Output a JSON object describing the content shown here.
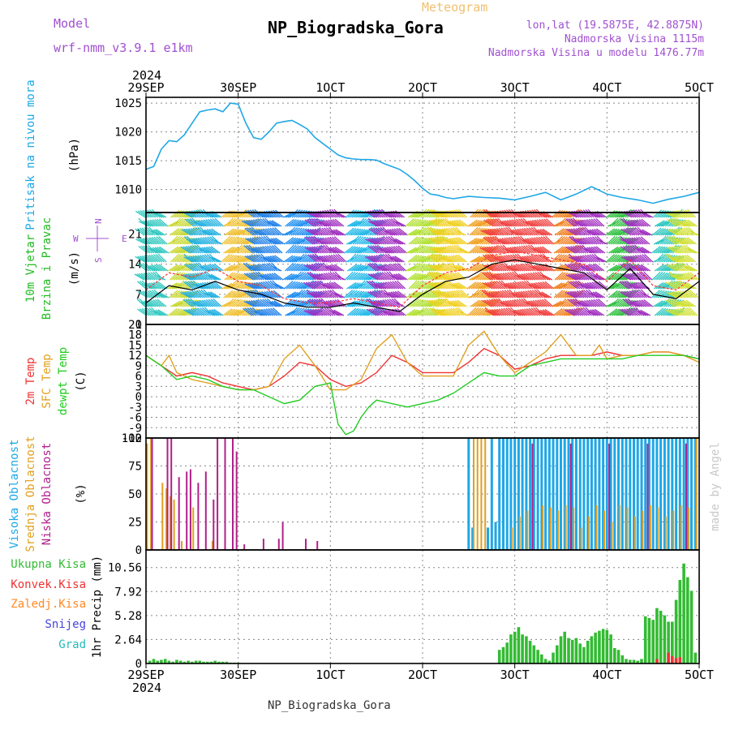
{
  "header": {
    "model_label": "Model",
    "model_name": "wrf-nmm_v3.9.1 e1km",
    "meteogram_label": "Meteogram",
    "station": "NP_Biogradska_Gora",
    "lonlat": "lon,lat (19.5875E, 42.8875N)",
    "altitude": "Nadmorska Visina 1115m",
    "model_altitude": "Nadmorska Visina u modelu 1476.77m",
    "footer_station": "NP_Biogradska_Gora",
    "credit": "made by Angel"
  },
  "time_axis": {
    "year": "2024",
    "ticks": [
      "29SEP",
      "30SEP",
      "1OCT",
      "2OCT",
      "3OCT",
      "4OCT",
      "5OCT"
    ]
  },
  "colors": {
    "pressure": "#1ea7e6",
    "wind_label": "#22bb22",
    "temp2m": "#ee3333",
    "sfc_temp": "#e0a020",
    "dewpt": "#22cc22",
    "cloud_high": "#1ea7e6",
    "cloud_mid": "#e0a020",
    "cloud_low": "#b0208a",
    "precip_total": "#33bb33",
    "precip_conv": "#ee3333",
    "precip_frozen": "#ff8822",
    "precip_snow": "#4444dd",
    "precip_hail": "#22bbbb",
    "compass": "#a050d0"
  },
  "chart_data": [
    {
      "type": "line",
      "name": "pressure",
      "ylabel_lines": [
        "Pritisak na nivou mora"
      ],
      "unit": "(hPa)",
      "ylim": [
        1006,
        1026
      ],
      "yticks": [
        1010,
        1015,
        1020,
        1025
      ],
      "x": [
        0,
        2,
        4,
        6,
        8,
        10,
        12,
        14,
        16,
        18,
        20,
        22,
        24,
        26,
        28,
        30,
        32,
        34,
        36,
        38,
        40,
        42,
        44,
        46,
        48,
        50,
        52,
        54,
        56,
        58,
        60,
        62,
        64,
        66,
        68,
        70,
        72,
        74,
        76,
        78,
        80,
        84,
        88,
        92,
        96,
        100,
        104,
        108,
        112,
        116,
        120,
        124,
        128,
        132,
        136,
        140,
        144
      ],
      "y": [
        1013.5,
        1014,
        1017,
        1018.5,
        1018.3,
        1019.5,
        1021.5,
        1023.5,
        1023.8,
        1024,
        1023.5,
        1025,
        1024.8,
        1021.5,
        1019,
        1018.7,
        1020,
        1021.5,
        1021.8,
        1022,
        1021.3,
        1020.5,
        1019,
        1018,
        1017,
        1016,
        1015.5,
        1015.3,
        1015.2,
        1015.2,
        1015.1,
        1014.5,
        1014,
        1013.5,
        1012.6,
        1011.5,
        1010.2,
        1009.2,
        1009,
        1008.6,
        1008.4,
        1008.8,
        1008.6,
        1008.5,
        1008.2,
        1008.8,
        1009.5,
        1008.2,
        1009.2,
        1010.5,
        1009.2,
        1008.6,
        1008.2,
        1007.6,
        1008.3,
        1008.8,
        1009.5
      ]
    },
    {
      "type": "wind",
      "name": "wind",
      "ylabel_lines": [
        "10m Vjetar",
        "Brzina i Pravac"
      ],
      "unit": "(m/s)",
      "ylim": [
        0,
        26
      ],
      "yticks": [
        0,
        7,
        14,
        21
      ],
      "compass": {
        "n": "N",
        "s": "S",
        "e": "E",
        "w": "W"
      },
      "x": [
        0,
        6,
        12,
        18,
        24,
        30,
        36,
        42,
        48,
        54,
        60,
        66,
        72,
        78,
        84,
        90,
        96,
        102,
        108,
        114,
        120,
        126,
        132,
        138,
        144
      ],
      "speed": [
        5,
        9,
        8,
        10,
        8,
        7,
        5,
        4,
        4,
        5,
        4,
        3,
        7,
        10,
        11,
        14,
        15,
        14,
        13,
        12,
        8,
        13,
        7,
        6,
        10
      ],
      "gust": [
        8,
        12,
        11,
        13,
        10,
        9,
        6,
        5,
        5,
        6,
        5,
        4,
        9,
        12,
        13,
        16,
        17,
        16,
        15,
        14,
        10,
        15,
        9,
        8,
        12
      ],
      "bands": [
        {
          "from": 0,
          "to": 6,
          "color": "#30c8c0"
        },
        {
          "from": 6,
          "to": 12,
          "color": "#c8d830"
        },
        {
          "from": 12,
          "to": 20,
          "color": "#20b0e0"
        },
        {
          "from": 20,
          "to": 28,
          "color": "#f0c030"
        },
        {
          "from": 28,
          "to": 36,
          "color": "#2080e8"
        },
        {
          "from": 36,
          "to": 44,
          "color": "#2090f0"
        },
        {
          "from": 44,
          "to": 52,
          "color": "#a030c0"
        },
        {
          "from": 52,
          "to": 60,
          "color": "#20b8e8"
        },
        {
          "from": 60,
          "to": 68,
          "color": "#a030c0"
        },
        {
          "from": 68,
          "to": 76,
          "color": "#b0e030"
        },
        {
          "from": 76,
          "to": 84,
          "color": "#f0d020"
        },
        {
          "from": 84,
          "to": 90,
          "color": "#f0a020"
        },
        {
          "from": 90,
          "to": 106,
          "color": "#f04040"
        },
        {
          "from": 106,
          "to": 112,
          "color": "#f08020"
        },
        {
          "from": 112,
          "to": 120,
          "color": "#a030c0"
        },
        {
          "from": 120,
          "to": 126,
          "color": "#30c040"
        },
        {
          "from": 126,
          "to": 132,
          "color": "#a030c0"
        },
        {
          "from": 132,
          "to": 138,
          "color": "#30c8c0"
        },
        {
          "from": 138,
          "to": 144,
          "color": "#d0e030"
        }
      ]
    },
    {
      "type": "line",
      "name": "temperature",
      "ylabel_lines": [
        "2m Temp",
        "SFC Temp",
        "dewpt Temp"
      ],
      "unit": "(C)",
      "ylim": [
        -12,
        21
      ],
      "yticks": [
        -12,
        -9,
        -6,
        -3,
        0,
        3,
        6,
        9,
        12,
        15,
        18,
        21
      ],
      "series": [
        {
          "name": "2m Temp",
          "x": [
            0,
            4,
            8,
            12,
            16,
            20,
            24,
            28,
            32,
            36,
            40,
            44,
            48,
            52,
            56,
            60,
            64,
            68,
            72,
            76,
            80,
            84,
            88,
            92,
            96,
            100,
            104,
            108,
            112,
            116,
            120,
            124,
            128,
            132,
            136,
            140,
            144
          ],
          "y": [
            12,
            9,
            6,
            7,
            6,
            4,
            3,
            2,
            3,
            6,
            10,
            9,
            5,
            3,
            4,
            7,
            12,
            10,
            7,
            7,
            7,
            10,
            14,
            12,
            8,
            9,
            11,
            12,
            12,
            12,
            13,
            12,
            12,
            13,
            13,
            12,
            11
          ]
        },
        {
          "name": "SFC Temp",
          "x": [
            0,
            4,
            6,
            8,
            12,
            16,
            20,
            24,
            28,
            32,
            36,
            40,
            44,
            48,
            52,
            56,
            60,
            64,
            68,
            72,
            76,
            80,
            84,
            88,
            92,
            96,
            100,
            104,
            108,
            112,
            116,
            118,
            120,
            124,
            128,
            132,
            136,
            140,
            144
          ],
          "y": [
            12,
            9,
            12,
            7,
            5,
            4,
            3,
            2,
            2,
            3,
            11,
            15,
            9,
            2,
            2,
            5,
            14,
            18,
            10,
            6,
            6,
            6,
            15,
            19,
            12,
            7,
            10,
            13,
            18,
            12,
            12,
            15,
            11,
            12,
            12,
            13,
            13,
            12,
            10
          ]
        },
        {
          "name": "dewpt Temp",
          "x": [
            0,
            4,
            8,
            12,
            16,
            20,
            24,
            28,
            32,
            36,
            40,
            44,
            48,
            50,
            52,
            54,
            56,
            58,
            60,
            64,
            68,
            72,
            76,
            80,
            84,
            88,
            92,
            96,
            100,
            104,
            108,
            112,
            116,
            120,
            124,
            128,
            132,
            136,
            140,
            144
          ],
          "y": [
            12,
            9,
            5,
            6,
            5,
            3,
            2,
            2,
            0,
            -2,
            -1,
            3,
            4,
            -8,
            -11,
            -10,
            -6,
            -3,
            -1,
            -2,
            -3,
            -2,
            -1,
            1,
            4,
            7,
            6,
            6,
            9,
            10,
            11,
            11,
            11,
            11,
            11,
            12,
            12,
            12,
            12,
            11
          ]
        }
      ]
    },
    {
      "type": "bar",
      "name": "clouds",
      "ylabel_lines": [
        "Visoka Oblacnost",
        "Srednja Oblacnost",
        "Niska Oblacnost"
      ],
      "unit": "(%)",
      "ylim": [
        0,
        100
      ],
      "yticks": [
        0,
        25,
        50,
        75,
        100
      ],
      "series": [
        {
          "name": "Visoka Oblacnost",
          "x": [
            84,
            85,
            86,
            87,
            88,
            89,
            90,
            91,
            92,
            93,
            94,
            95,
            96,
            97,
            98,
            99,
            100,
            101,
            102,
            103,
            104,
            105,
            106,
            107,
            108,
            109,
            110,
            111,
            112,
            113,
            114,
            115,
            116,
            117,
            118,
            119,
            120,
            121,
            122,
            123,
            124,
            125,
            126,
            127,
            128,
            129,
            130,
            131,
            132,
            133,
            134,
            135,
            136,
            137,
            138,
            139,
            140,
            141,
            142,
            143
          ],
          "values": [
            100,
            20,
            0,
            0,
            0,
            20,
            100,
            25,
            100,
            100,
            100,
            100,
            100,
            100,
            100,
            100,
            100,
            100,
            100,
            100,
            100,
            100,
            100,
            100,
            100,
            100,
            100,
            100,
            100,
            100,
            100,
            100,
            100,
            100,
            100,
            100,
            100,
            100,
            100,
            100,
            100,
            100,
            100,
            100,
            100,
            100,
            100,
            100,
            100,
            100,
            100,
            100,
            100,
            100,
            100,
            100,
            100,
            100,
            100,
            100
          ]
        },
        {
          "name": "Srednja Oblacnost",
          "x": [
            0,
            1,
            4,
            5,
            6,
            7,
            9,
            12,
            17,
            25,
            85,
            86,
            87,
            88,
            95,
            97,
            99,
            103,
            105,
            107,
            109,
            111,
            113,
            115,
            117,
            119,
            121,
            123,
            125,
            127,
            129,
            131,
            133,
            135,
            137,
            139,
            141,
            143
          ],
          "values": [
            95,
            100,
            60,
            55,
            48,
            45,
            8,
            38,
            8,
            1,
            100,
            100,
            100,
            100,
            20,
            30,
            35,
            40,
            38,
            35,
            40,
            38,
            20,
            30,
            40,
            35,
            25,
            40,
            38,
            30,
            35,
            40,
            38,
            30,
            35,
            40,
            38,
            100
          ]
        },
        {
          "name": "Niska Oblacnost",
          "x": [
            1,
            5,
            6,
            8,
            10,
            11,
            13,
            15,
            17,
            18,
            20,
            22,
            23,
            25,
            30,
            34,
            35,
            41,
            44,
            46,
            50,
            60,
            70,
            80,
            100,
            110,
            120,
            130,
            140
          ],
          "values": [
            100,
            100,
            100,
            65,
            70,
            72,
            60,
            70,
            45,
            100,
            100,
            100,
            88,
            5,
            10,
            10,
            25,
            10,
            8,
            0,
            0,
            0,
            0,
            0,
            95,
            95,
            95,
            95,
            95
          ]
        }
      ]
    },
    {
      "type": "bar",
      "name": "precip",
      "ylabel_lines": [
        "Ukupna Kisa",
        "Konvek.Kisa",
        "Zaledj.Kisa",
        "Snijeg",
        "Grad"
      ],
      "unit": "1hr Precip (mm)",
      "ylim": [
        0,
        12.5
      ],
      "yticks": [
        0,
        2.64,
        5.28,
        7.92,
        10.56
      ],
      "ytick_labels": [
        "0",
        "2.64",
        "5.28",
        "7.92",
        "10.56"
      ],
      "series": [
        {
          "name": "Ukupna Kisa",
          "x": [
            1,
            2,
            3,
            4,
            5,
            6,
            7,
            8,
            9,
            10,
            11,
            12,
            13,
            14,
            15,
            16,
            17,
            18,
            19,
            20,
            21,
            22,
            23,
            24,
            92,
            93,
            94,
            95,
            96,
            97,
            98,
            99,
            100,
            101,
            102,
            103,
            104,
            105,
            106,
            107,
            108,
            109,
            110,
            111,
            112,
            113,
            114,
            115,
            116,
            117,
            118,
            119,
            120,
            121,
            122,
            123,
            124,
            125,
            126,
            127,
            128,
            129,
            130,
            131,
            132,
            133,
            134,
            135,
            136,
            137,
            138,
            139,
            140,
            141,
            142,
            143
          ],
          "values": [
            0.3,
            0.5,
            0.3,
            0.4,
            0.5,
            0.3,
            0.2,
            0.4,
            0.3,
            0.2,
            0.3,
            0.2,
            0.3,
            0.3,
            0.2,
            0.2,
            0.2,
            0.3,
            0.2,
            0.2,
            0.2,
            0.1,
            0.1,
            0.1,
            1.5,
            1.8,
            2.3,
            3.2,
            3.5,
            4.0,
            3.2,
            3.0,
            2.5,
            2.0,
            1.5,
            1.0,
            0.5,
            0.3,
            1.2,
            2.0,
            3.0,
            3.5,
            2.8,
            2.6,
            2.8,
            2.2,
            1.8,
            2.5,
            3.0,
            3.4,
            3.6,
            3.8,
            3.7,
            3.2,
            1.7,
            1.5,
            0.9,
            0.5,
            0.4,
            0.4,
            0.3,
            0.5,
            5.2,
            5.0,
            4.8,
            6.1,
            5.8,
            5.3,
            4.6,
            4.6,
            7.0,
            9.2,
            11.0,
            9.5,
            8.0,
            1.2
          ]
        },
        {
          "name": "Konvek.Kisa",
          "x": [
            133,
            136,
            137,
            138,
            139
          ],
          "values": [
            0.5,
            1.2,
            0.8,
            0.6,
            0.7
          ]
        }
      ]
    }
  ]
}
